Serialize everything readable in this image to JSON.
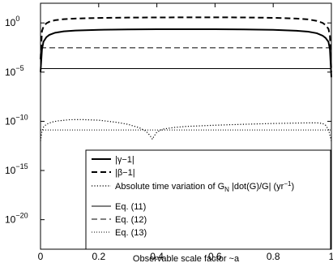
{
  "chart_data": {
    "type": "line",
    "title": "",
    "xlabel": "Observable scale factor ~a",
    "ylabel": "",
    "xlim": [
      0,
      1
    ],
    "ylim": [
      1e-23,
      100.0
    ],
    "yscale": "log",
    "grid": false,
    "legend_position": "bottom-right",
    "x_ticks": [
      {
        "value": 0,
        "label": "0"
      },
      {
        "value": 0.2,
        "label": "0.2"
      },
      {
        "value": 0.4,
        "label": "0.4"
      },
      {
        "value": 0.6,
        "label": "0.6"
      },
      {
        "value": 0.8,
        "label": "0.8"
      },
      {
        "value": 1,
        "label": "1"
      }
    ],
    "y_ticks": [
      {
        "value": 1,
        "base": "10",
        "exp": "0"
      },
      {
        "value": 1e-05,
        "base": "10",
        "exp": "−5"
      },
      {
        "value": 1e-10,
        "base": "10",
        "exp": "−10"
      },
      {
        "value": 1e-15,
        "base": "10",
        "exp": "−15"
      },
      {
        "value": 1e-20,
        "base": "10",
        "exp": "−20"
      }
    ],
    "series": [
      {
        "name": "|γ−1|",
        "style": "solid-thick",
        "x": [
          0.0,
          0.005,
          0.01,
          0.02,
          0.03,
          0.05,
          0.08,
          0.12,
          0.2,
          0.3,
          0.4,
          0.5,
          0.6,
          0.7,
          0.8,
          0.88,
          0.92,
          0.95,
          0.97,
          0.98,
          0.99,
          0.995,
          1.0
        ],
        "y": [
          1e-05,
          0.002,
          0.012,
          0.035,
          0.06,
          0.1,
          0.14,
          0.17,
          0.2,
          0.22,
          0.23,
          0.23,
          0.23,
          0.22,
          0.2,
          0.16,
          0.13,
          0.09,
          0.05,
          0.03,
          0.012,
          0.002,
          3e-06
        ]
      },
      {
        "name": "|β−1|",
        "style": "dashed-thick",
        "x": [
          0.0,
          0.005,
          0.01,
          0.02,
          0.03,
          0.05,
          0.08,
          0.12,
          0.2,
          0.3,
          0.4,
          0.5,
          0.6,
          0.7,
          0.8,
          0.88,
          0.92,
          0.95,
          0.97,
          0.98,
          0.99,
          0.995,
          1.0
        ],
        "y": [
          0.0002,
          0.15,
          0.4,
          0.9,
          1.3,
          1.9,
          2.4,
          2.8,
          3.2,
          3.5,
          3.6,
          3.7,
          3.7,
          3.6,
          3.3,
          2.8,
          2.3,
          1.6,
          1.0,
          0.6,
          0.25,
          0.05,
          1e-05
        ]
      },
      {
        "name": "Absolute time variation of G",
        "name_subscript": "N",
        "name_suffix": " |dot(G)/G| (yr",
        "name_superscript": "−1",
        "name_end": ")",
        "style": "dotted-thick",
        "x": [
          0.0,
          0.005,
          0.01,
          0.02,
          0.04,
          0.06,
          0.1,
          0.14,
          0.2,
          0.26,
          0.3,
          0.34,
          0.36,
          0.37,
          0.38,
          0.385,
          0.39,
          0.4,
          0.42,
          0.46,
          0.5,
          0.6,
          0.7,
          0.8,
          0.9,
          0.95,
          0.97,
          0.98,
          0.99,
          1.0
        ],
        "y": [
          1e-12,
          1e-11,
          2.5e-11,
          5e-11,
          8.5e-11,
          1.1e-10,
          1.45e-10,
          1.5e-10,
          1.3e-10,
          8e-11,
          5e-11,
          2.2e-11,
          1.1e-11,
          6e-12,
          2.5e-12,
          1.5e-12,
          3e-12,
          8e-12,
          1.6e-11,
          2.4e-11,
          3e-11,
          4e-11,
          5e-11,
          6e-11,
          6.8e-11,
          7e-11,
          6e-11,
          4e-11,
          1.5e-11,
          1e-12
        ]
      },
      {
        "name": "Eq. (11)",
        "style": "solid-thin",
        "x": [
          0,
          1
        ],
        "y": [
          2.3e-05,
          2.3e-05
        ]
      },
      {
        "name": "Eq. (12)",
        "style": "dashed-thin",
        "x": [
          0,
          1
        ],
        "y": [
          0.003,
          0.003
        ]
      },
      {
        "name": "Eq. (13)",
        "style": "dotted-thin",
        "x": [
          0,
          1
        ],
        "y": [
          1.3e-11,
          1.3e-11
        ]
      }
    ]
  }
}
